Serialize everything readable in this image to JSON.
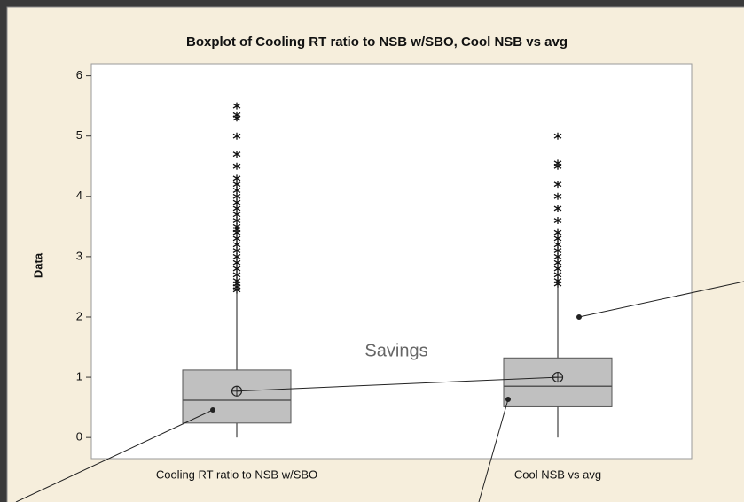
{
  "chart_data": {
    "type": "box",
    "title": "Boxplot of Cooling RT ratio to NSB w/SBO, Cool NSB vs avg",
    "y_label": "Data",
    "categories": [
      "Cooling RT ratio to NSB w/SBO",
      "Cool NSB vs avg"
    ],
    "boxes": [
      {
        "whisker_low": 0,
        "q1": 0.24,
        "median": 0.62,
        "q3": 1.12,
        "whisker_high": 2.4,
        "mean": 0.77,
        "outliers": [
          2.45,
          2.5,
          2.55,
          2.6,
          2.7,
          2.8,
          2.9,
          3.0,
          3.1,
          3.2,
          3.3,
          3.4,
          3.45,
          3.5,
          3.6,
          3.7,
          3.8,
          3.9,
          4.0,
          4.1,
          4.2,
          4.3,
          4.5,
          4.7,
          5.0,
          5.3,
          5.35,
          5.5
        ]
      },
      {
        "whisker_low": 0,
        "q1": 0.51,
        "median": 0.85,
        "q3": 1.32,
        "whisker_high": 2.5,
        "mean": 1.0,
        "outliers": [
          2.55,
          2.6,
          2.7,
          2.8,
          2.9,
          3.0,
          3.1,
          3.2,
          3.3,
          3.4,
          3.6,
          3.8,
          4.0,
          4.2,
          4.5,
          4.55,
          5.0
        ]
      }
    ],
    "box_color": "#c0c0c0",
    "ylim": [
      -0.35,
      6.2
    ],
    "yticks": [
      0,
      1,
      2,
      3,
      4,
      5,
      6
    ],
    "annotations": [
      "Savings"
    ]
  }
}
